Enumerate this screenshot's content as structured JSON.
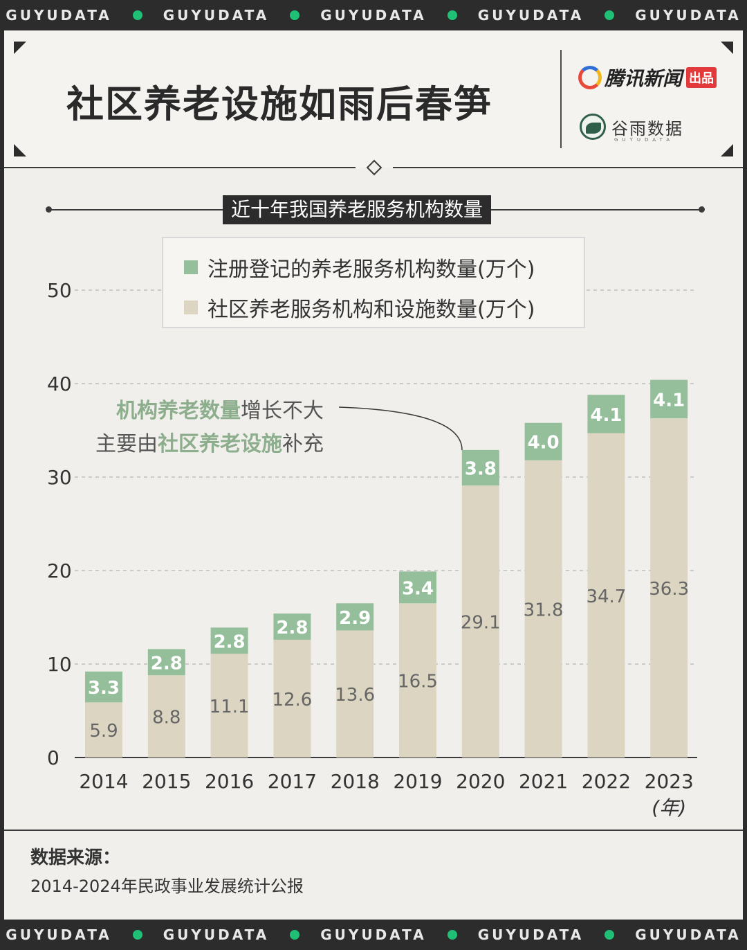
{
  "brand": {
    "band_text": "GUYUDATA"
  },
  "header": {
    "title": "社区养老设施如雨后春笋",
    "logo1_text": "腾讯新闻",
    "logo1_badge": "出品",
    "logo2_text": "谷雨数据",
    "logo2_sub": "GUYUDATA"
  },
  "chart_data": {
    "type": "bar",
    "title": "近十年我国养老服务机构数量",
    "categories": [
      "2014",
      "2015",
      "2016",
      "2017",
      "2018",
      "2019",
      "2020",
      "2021",
      "2022",
      "2023"
    ],
    "xunit": "(年)",
    "series": [
      {
        "name": "社区养老服务机构和设施数量(万个)",
        "color": "#dcd5c1",
        "values": [
          5.9,
          8.8,
          11.1,
          12.6,
          13.6,
          16.5,
          29.1,
          31.8,
          34.7,
          36.3
        ]
      },
      {
        "name": "注册登记的养老服务机构数量(万个)",
        "color": "#94bf9a",
        "values": [
          3.3,
          2.8,
          2.8,
          2.8,
          2.9,
          3.4,
          3.8,
          4.0,
          4.1,
          4.1
        ]
      }
    ],
    "ylim": [
      0,
      50
    ],
    "yticks": [
      0,
      10,
      20,
      30,
      40,
      50
    ],
    "stacked": true,
    "grid": true,
    "legend_position": "top",
    "annotation": {
      "line1_highlight": "机构养老数量",
      "line1_rest": "增长不大",
      "line2_prefix": "主要由",
      "line2_highlight": "社区养老设施",
      "line2_rest": "补充"
    }
  },
  "source": {
    "label": "数据来源：",
    "text": "2014-2024年民政事业发展统计公报"
  }
}
